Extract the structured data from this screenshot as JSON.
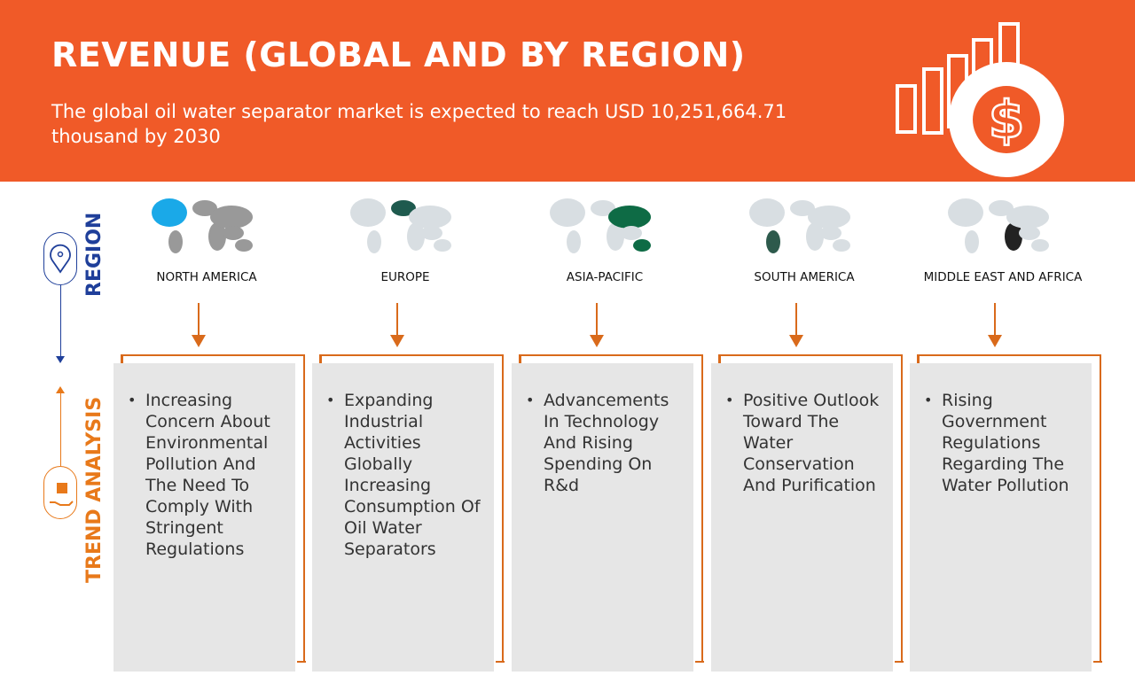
{
  "header": {
    "title": "REVENUE (GLOBAL AND BY REGION)",
    "subtitle": "The global oil water separator market is expected to reach USD 10,251,664.71 thousand by 2030"
  },
  "side": {
    "region_label": "REGION",
    "trend_label": "TREND ANALYSIS"
  },
  "colors": {
    "header": "#F05A28",
    "region": "#1F3F9A",
    "trend": "#E8791A"
  },
  "regions": [
    {
      "name": "NORTH AMERICA",
      "highlight": "#1AA9E8",
      "trend": "Increasing Concern About Environmental Pollution And The Need To Comply With Stringent Regulations"
    },
    {
      "name": "EUROPE",
      "highlight": "#1E5A4E",
      "trend": "Expanding Industrial Activities Globally Increasing Consumption Of Oil Water Separators"
    },
    {
      "name": "ASIA-PACIFIC",
      "highlight": "#0E6B45",
      "trend": "Advancements In Technology And Rising Spending On R&d"
    },
    {
      "name": "SOUTH AMERICA",
      "highlight": "#2D5A4C",
      "trend": "Positive Outlook Toward The Water Conservation And Purification"
    },
    {
      "name": "MIDDLE EAST AND AFRICA",
      "highlight": "#222222",
      "trend": "Rising Government Regulations Regarding The Water Pollution"
    }
  ]
}
